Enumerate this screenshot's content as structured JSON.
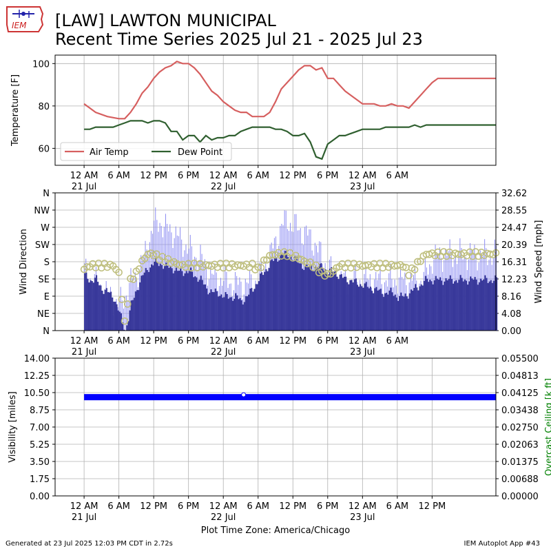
{
  "header": {
    "title_line1": "[LAW] LAWTON MUNICIPAL",
    "title_line2": "Recent Time Series 2025 Jul 21 - 2025 Jul 23",
    "logo_text": "IEM"
  },
  "footer": {
    "generated": "Generated at 23 Jul 2025 12:03 PM CDT in 2.72s",
    "app": "IEM Autoplot App #43",
    "timezone": "Plot Time Zone: America/Chicago"
  },
  "colors": {
    "air_temp": "#d65f5f",
    "dew_point": "#2f5f2f",
    "wind_gust": "#8c8cf2",
    "wind_speed": "#38389a",
    "wind_dir": "#bfbf7f",
    "visibility": "#0000ff",
    "ceiling_axis": "#008000",
    "grid": "#b0b0b0"
  },
  "chart_data": [
    {
      "type": "line",
      "ylabel": "Temperature [F]",
      "xlim_hours": [
        -5,
        71
      ],
      "ylim": [
        52,
        104
      ],
      "yticks": [
        60,
        80,
        100
      ],
      "xticks": [
        {
          "h": 0,
          "label": "12 AM",
          "date": "21 Jul"
        },
        {
          "h": 6,
          "label": "6 AM"
        },
        {
          "h": 12,
          "label": "12 PM"
        },
        {
          "h": 18,
          "label": "6 PM"
        },
        {
          "h": 24,
          "label": "12 AM",
          "date": "22 Jul"
        },
        {
          "h": 30,
          "label": "6 AM"
        },
        {
          "h": 36,
          "label": "12 PM"
        },
        {
          "h": 42,
          "label": "6 PM"
        },
        {
          "h": 48,
          "label": "12 AM",
          "date": "23 Jul"
        },
        {
          "h": 54,
          "label": "6 AM"
        }
      ],
      "grid": true,
      "legend": "lower-left",
      "series": [
        {
          "name": "Air Temp",
          "x": [
            0,
            2,
            4,
            6,
            7,
            8,
            9,
            10,
            11,
            12,
            13,
            14,
            15,
            16,
            17,
            18,
            19,
            20,
            21,
            22,
            23,
            24,
            25,
            26,
            27,
            28,
            29,
            30,
            31,
            32,
            33,
            34,
            35,
            36,
            37,
            38,
            39,
            40,
            41,
            42,
            43,
            44,
            45,
            46,
            47,
            48,
            49,
            50,
            51,
            52,
            53,
            54,
            55,
            56,
            57,
            58,
            59,
            60,
            61,
            62,
            63,
            64,
            65,
            66,
            67,
            68,
            69,
            70,
            71
          ],
          "values": [
            81,
            77,
            75,
            74,
            74,
            77,
            81,
            86,
            89,
            93,
            96,
            98,
            99,
            101,
            100,
            100,
            98,
            95,
            91,
            87,
            85,
            82,
            80,
            78,
            77,
            77,
            75,
            75,
            75,
            77,
            82,
            88,
            91,
            94,
            97,
            99,
            99,
            97,
            98,
            93,
            93,
            90,
            87,
            85,
            83,
            81,
            81,
            81,
            80,
            80,
            81,
            80,
            80,
            79,
            82,
            85,
            88,
            91,
            93,
            93,
            93,
            93,
            93,
            93,
            93,
            93,
            93,
            93,
            93
          ]
        },
        {
          "name": "Dew Point",
          "x": [
            0,
            1,
            2,
            3,
            4,
            5,
            6,
            7,
            8,
            9,
            10,
            11,
            12,
            13,
            14,
            15,
            16,
            17,
            18,
            19,
            20,
            21,
            22,
            23,
            24,
            25,
            26,
            27,
            28,
            29,
            30,
            31,
            32,
            33,
            34,
            35,
            36,
            37,
            38,
            39,
            40,
            41,
            42,
            43,
            44,
            45,
            46,
            47,
            48,
            49,
            50,
            51,
            52,
            53,
            54,
            55,
            56,
            57,
            58,
            59,
            60,
            61,
            62,
            63,
            64,
            65,
            66,
            67,
            68,
            69,
            70,
            71
          ],
          "values": [
            69,
            69,
            70,
            70,
            70,
            70,
            71,
            72,
            73,
            73,
            73,
            72,
            73,
            73,
            72,
            68,
            68,
            64,
            66,
            66,
            63,
            66,
            64,
            65,
            65,
            66,
            66,
            68,
            69,
            70,
            70,
            70,
            70,
            69,
            69,
            68,
            66,
            66,
            67,
            63,
            56,
            55,
            62,
            64,
            66,
            66,
            67,
            68,
            69,
            69,
            69,
            69,
            70,
            70,
            70,
            70,
            70,
            71,
            70,
            71,
            71,
            71,
            71,
            71,
            71,
            71,
            71,
            71,
            71,
            71,
            71,
            71
          ]
        }
      ]
    },
    {
      "type": "bar",
      "ylabel": "Wind Direction",
      "ylabel_right": "Wind Speed [mph]",
      "dir_ticks": [
        "N",
        "NE",
        "E",
        "SE",
        "S",
        "SW",
        "W",
        "NW",
        "N"
      ],
      "speed_ticks": [
        "0.00",
        "4.08",
        "8.16",
        "12.23",
        "16.31",
        "20.39",
        "24.47",
        "28.55",
        "32.62"
      ],
      "speed_lim": [
        0,
        32.62
      ],
      "series": [
        {
          "name": "Wind Gust",
          "hours": [
            0,
            3,
            6,
            8,
            10,
            11,
            12,
            13,
            14,
            15,
            16,
            17,
            18,
            20,
            22,
            24,
            26,
            28,
            30,
            32,
            33,
            34,
            35,
            36,
            37,
            38,
            39,
            40,
            41,
            42,
            44,
            46,
            48,
            50,
            52,
            54,
            56,
            58,
            59,
            60,
            62,
            64,
            66,
            67,
            68,
            69,
            70,
            71
          ],
          "values": [
            14,
            10,
            6,
            11,
            16,
            21,
            25,
            26,
            24,
            24,
            22,
            21,
            19,
            17,
            13,
            12,
            11,
            11,
            12,
            18,
            21,
            25,
            26,
            25,
            24,
            23,
            22,
            20,
            17,
            15,
            12,
            12,
            12,
            12,
            12,
            12,
            12,
            12,
            14,
            17,
            18,
            18,
            18,
            18,
            18,
            18,
            18,
            18
          ]
        },
        {
          "name": "Wind Speed",
          "hours": [
            0,
            1,
            2,
            3,
            4,
            5,
            6,
            7,
            8,
            9,
            10,
            11,
            12,
            13,
            14,
            15,
            16,
            17,
            18,
            19,
            20,
            21,
            22,
            23,
            24,
            25,
            26,
            27,
            28,
            29,
            30,
            31,
            32,
            33,
            34,
            35,
            36,
            37,
            38,
            39,
            40,
            41,
            42,
            43,
            44,
            45,
            46,
            47,
            48,
            49,
            50,
            51,
            52,
            53,
            54,
            55,
            56,
            57,
            58,
            59,
            60,
            61,
            62,
            63,
            64,
            65,
            66,
            67,
            68,
            69,
            70,
            71
          ],
          "values": [
            13,
            12,
            12,
            10,
            9,
            8,
            4,
            0,
            6,
            10,
            13,
            15,
            16,
            16,
            15,
            15,
            14,
            14,
            14,
            13,
            12,
            10,
            9,
            9,
            8,
            8,
            8,
            7,
            8,
            10,
            12,
            14,
            16,
            17,
            18,
            18,
            17,
            16,
            15,
            15,
            15,
            15,
            14,
            14,
            13,
            12,
            12,
            11,
            11,
            10,
            10,
            9,
            9,
            9,
            8,
            8,
            9,
            10,
            11,
            12,
            12,
            12,
            12,
            12,
            12,
            12,
            12,
            12,
            12,
            12,
            12,
            12
          ]
        },
        {
          "name": "Wind Direction",
          "hours": [
            0,
            1,
            2,
            3,
            4,
            5,
            6,
            7,
            8,
            9,
            10,
            11,
            12,
            13,
            14,
            15,
            16,
            17,
            18,
            19,
            20,
            21,
            22,
            23,
            24,
            25,
            26,
            27,
            28,
            29,
            30,
            31,
            32,
            33,
            34,
            35,
            36,
            37,
            38,
            39,
            40,
            41,
            42,
            43,
            44,
            45,
            46,
            47,
            48,
            49,
            50,
            51,
            52,
            53,
            54,
            55,
            56,
            57,
            58,
            59,
            60,
            61,
            62,
            63,
            64,
            65,
            66,
            67,
            68,
            69,
            70,
            71
          ],
          "values": [
            160,
            170,
            170,
            170,
            170,
            170,
            150,
            20,
            130,
            150,
            180,
            200,
            200,
            190,
            185,
            180,
            175,
            170,
            170,
            170,
            170,
            170,
            170,
            170,
            170,
            170,
            170,
            170,
            170,
            170,
            160,
            180,
            195,
            200,
            200,
            200,
            195,
            190,
            180,
            175,
            165,
            150,
            145,
            155,
            170,
            170,
            170,
            170,
            170,
            170,
            170,
            170,
            170,
            170,
            170,
            170,
            150,
            165,
            185,
            200,
            200,
            200,
            200,
            200,
            200,
            200,
            200,
            200,
            200,
            200,
            200,
            200
          ]
        }
      ]
    },
    {
      "type": "scatter",
      "ylabel": "Visibility [miles]",
      "ylabel_right": "Overcast Ceiling [k ft]",
      "vis_ticks": [
        "0.00",
        "1.75",
        "3.50",
        "5.25",
        "7.00",
        "8.75",
        "10.50",
        "12.25",
        "14.00"
      ],
      "ceil_ticks": [
        "0.00000",
        "0.00688",
        "0.01375",
        "0.02063",
        "0.02750",
        "0.03438",
        "0.04125",
        "0.04813",
        "0.05500"
      ],
      "ylim": [
        0,
        14
      ],
      "xticks_extra": {
        "h": 60,
        "label": "12 PM"
      },
      "visibility_value": 10,
      "visibility_range_hours": [
        0,
        71
      ]
    }
  ]
}
